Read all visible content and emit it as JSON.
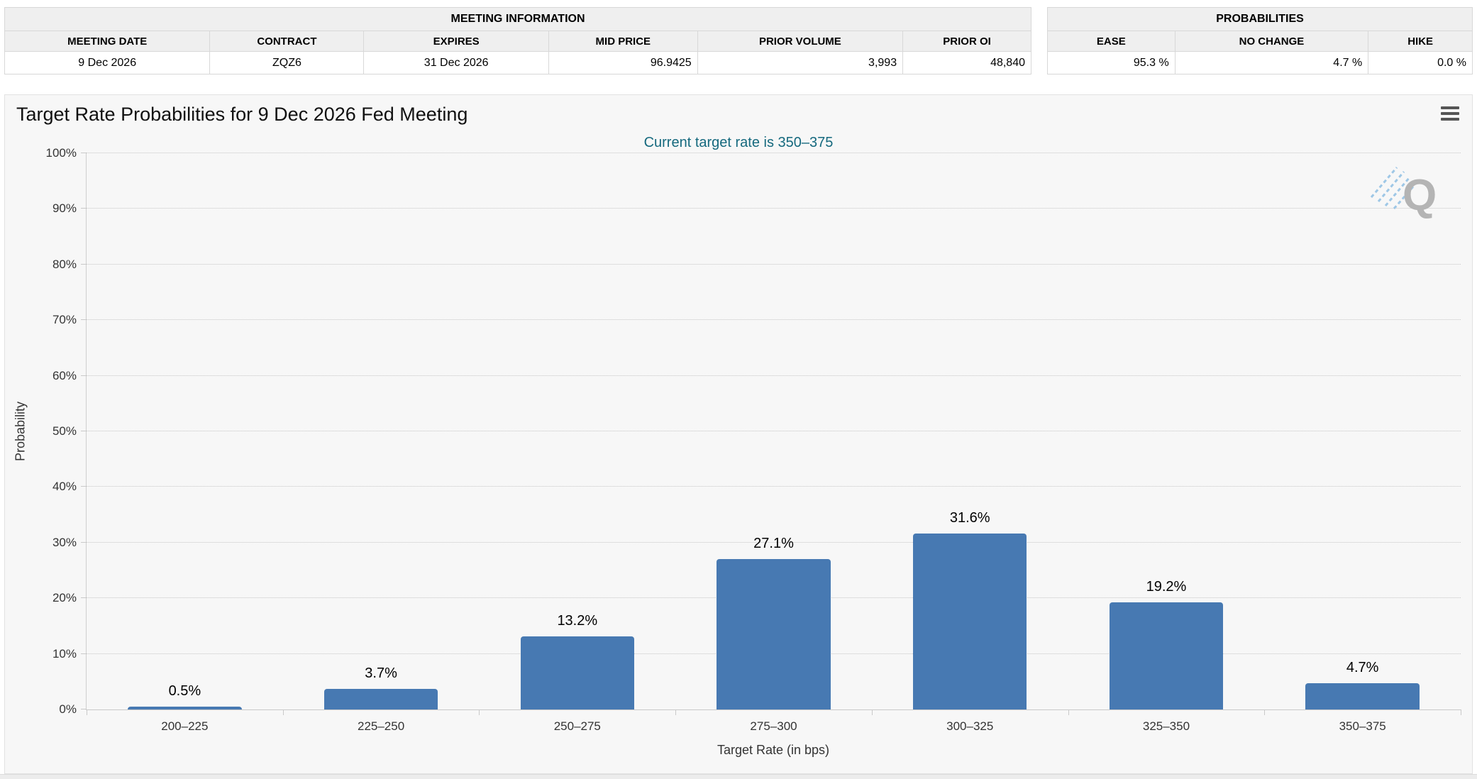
{
  "meeting_information": {
    "title": "MEETING INFORMATION",
    "columns": [
      "MEETING DATE",
      "CONTRACT",
      "EXPIRES",
      "MID PRICE",
      "PRIOR VOLUME",
      "PRIOR OI"
    ],
    "values": [
      "9 Dec 2026",
      "ZQZ6",
      "31 Dec 2026",
      "96.9425",
      "3,993",
      "48,840"
    ]
  },
  "probabilities_summary": {
    "title": "PROBABILITIES",
    "columns": [
      "EASE",
      "NO CHANGE",
      "HIKE"
    ],
    "values": [
      "95.3 %",
      "4.7 %",
      "0.0 %"
    ]
  },
  "chart": {
    "watermark_letter": "Q",
    "menu_icon": "hamburger-menu"
  },
  "chart_data": {
    "type": "bar",
    "title": "Target Rate Probabilities for 9 Dec 2026 Fed Meeting",
    "subtitle": "Current target rate is 350–375",
    "categories": [
      "200–225",
      "225–250",
      "250–275",
      "275–300",
      "300–325",
      "325–350",
      "350–375"
    ],
    "values": [
      0.5,
      3.7,
      13.2,
      27.1,
      31.6,
      19.2,
      4.7
    ],
    "data_labels": [
      "0.5%",
      "3.7%",
      "13.2%",
      "27.1%",
      "31.6%",
      "19.2%",
      "4.7%"
    ],
    "xlabel": "Target Rate (in bps)",
    "ylabel": "Probability",
    "ylim": [
      0,
      100
    ],
    "ytick_labels": [
      "0%",
      "10%",
      "20%",
      "30%",
      "40%",
      "50%",
      "60%",
      "70%",
      "80%",
      "90%",
      "100%"
    ],
    "grid": true,
    "legend": "none",
    "bar_color": "#4779b2",
    "gridline_color": "#c6c6c6",
    "subtitle_color": "#15697e"
  }
}
